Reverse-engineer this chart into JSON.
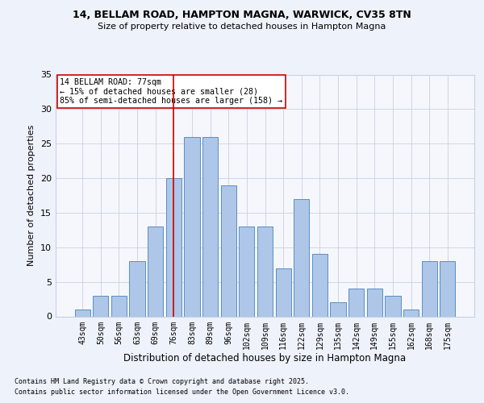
{
  "title1": "14, BELLAM ROAD, HAMPTON MAGNA, WARWICK, CV35 8TN",
  "title2": "Size of property relative to detached houses in Hampton Magna",
  "xlabel": "Distribution of detached houses by size in Hampton Magna",
  "ylabel": "Number of detached properties",
  "categories": [
    "43sqm",
    "50sqm",
    "56sqm",
    "63sqm",
    "69sqm",
    "76sqm",
    "83sqm",
    "89sqm",
    "96sqm",
    "102sqm",
    "109sqm",
    "116sqm",
    "122sqm",
    "129sqm",
    "135sqm",
    "142sqm",
    "149sqm",
    "155sqm",
    "162sqm",
    "168sqm",
    "175sqm"
  ],
  "values": [
    1,
    3,
    3,
    8,
    13,
    20,
    26,
    26,
    19,
    13,
    13,
    7,
    17,
    9,
    2,
    4,
    4,
    3,
    1,
    8,
    8
  ],
  "bar_color": "#aec6e8",
  "bar_edge_color": "#5a8fc2",
  "vline_index": 5,
  "vline_color": "#cc0000",
  "annotation_text": "14 BELLAM ROAD: 77sqm\n← 15% of detached houses are smaller (28)\n85% of semi-detached houses are larger (158) →",
  "annotation_box_color": "#ffffff",
  "annotation_box_edge": "#cc0000",
  "footer1": "Contains HM Land Registry data © Crown copyright and database right 2025.",
  "footer2": "Contains public sector information licensed under the Open Government Licence v3.0.",
  "bg_color": "#eef2fb",
  "plot_bg_color": "#f5f7fd",
  "grid_color": "#c8d0e0",
  "ylim": [
    0,
    35
  ],
  "yticks": [
    0,
    5,
    10,
    15,
    20,
    25,
    30,
    35
  ]
}
